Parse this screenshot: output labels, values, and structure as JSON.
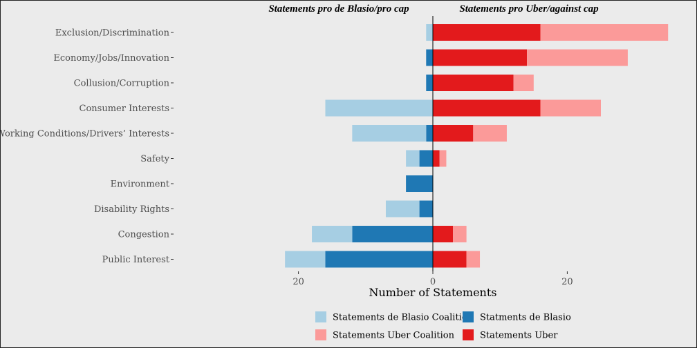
{
  "chart_data": {
    "type": "bar",
    "orientation": "horizontal-diverging",
    "xlabel": "Number of Statements",
    "side_titles": {
      "left": "Statements pro de Blasio/pro cap",
      "right": "Statements pro Uber/against cap"
    },
    "x_ticks": [
      {
        "value": -20,
        "label": "20"
      },
      {
        "value": 0,
        "label": "0"
      },
      {
        "value": 20,
        "label": "20"
      }
    ],
    "xlim": [
      -38,
      39
    ],
    "categories": [
      "Exclusion/Discrimination",
      "Economy/Jobs/Innovation",
      "Collusion/Corruption",
      "Consumer Interests",
      "Working Conditions/Drivers’ Interests",
      "Safety",
      "Environment",
      "Disability Rights",
      "Congestion",
      "Public Interest"
    ],
    "series": [
      {
        "name": "Statments de Blasio",
        "side": "left",
        "color": "#1f78b4",
        "values": [
          0,
          1,
          1,
          0,
          1,
          2,
          4,
          2,
          12,
          16
        ]
      },
      {
        "name": "Statements de Blasio Coalition",
        "side": "left",
        "color": "#a6cee3",
        "values": [
          1,
          0,
          0,
          16,
          11,
          2,
          0,
          5,
          6,
          6
        ]
      },
      {
        "name": "Statements Uber",
        "side": "right",
        "color": "#e31a1c",
        "values": [
          16,
          14,
          12,
          16,
          6,
          1,
          0,
          0,
          3,
          5
        ]
      },
      {
        "name": "Statements Uber Coalition",
        "side": "right",
        "color": "#fb9a99",
        "values": [
          19,
          15,
          3,
          9,
          5,
          1,
          0,
          0,
          2,
          2
        ]
      }
    ],
    "legend": {
      "position": "bottom",
      "order": [
        "Statements de Blasio Coalition",
        "Statments de Blasio",
        "Statements Uber Coalition",
        "Statements Uber"
      ]
    },
    "grid": false
  }
}
